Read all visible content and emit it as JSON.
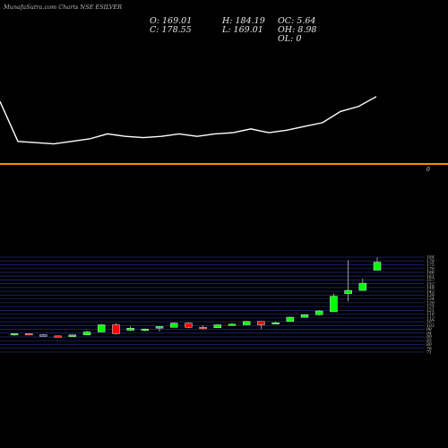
{
  "brand": "MunafaSutra.com Charts NSE ESILVER",
  "ohlc_display": {
    "o_label": "O: 169.01",
    "h_label": "H: 184.19",
    "oc_label": "OC: 5.64",
    "c_label": "C: 178.55",
    "l_label": "L: 169.01",
    "oh_label": "OH: 8.98",
    "ol_label": "OL: 0"
  },
  "separator_label": "0",
  "colors": {
    "up": "#00ff00",
    "down": "#ff0000",
    "line": "#ffffff",
    "separator": "#ff8800",
    "grid": "#1d2a6e",
    "background": "#000000"
  },
  "chart_data": [
    {
      "type": "line",
      "name": "upper-line",
      "values": [
        102,
        86,
        85.5,
        85,
        86,
        87,
        89,
        88,
        87.5,
        88,
        89,
        88,
        89,
        89.5,
        91,
        89.5,
        90.5,
        92,
        93.5,
        98,
        100,
        104
      ],
      "ylim": [
        78,
        114
      ]
    },
    {
      "type": "candlestick",
      "ylim": [
        71.5,
        184.5
      ],
      "yticks": [
        "184",
        "179",
        "175",
        "170",
        "166",
        "161",
        "157",
        "152",
        "148",
        "143",
        "139",
        "134",
        "130",
        "125",
        "121",
        "116",
        "112",
        "107",
        "103",
        "98",
        "94",
        "89",
        "85",
        "80",
        "76",
        "71"
      ],
      "candles": [
        {
          "o": 92,
          "h": 94,
          "l": 91,
          "c": 93.5
        },
        {
          "o": 93.5,
          "h": 94,
          "l": 91.5,
          "c": 92
        },
        {
          "o": 92,
          "h": 93,
          "l": 90.5,
          "c": 91
        },
        {
          "o": 90.8,
          "h": 91.5,
          "l": 89.5,
          "c": 90
        },
        {
          "o": 90,
          "h": 92.5,
          "l": 89.5,
          "c": 92
        },
        {
          "o": 92,
          "h": 96.5,
          "l": 92,
          "c": 95.5
        },
        {
          "o": 95.5,
          "h": 105,
          "l": 95.5,
          "c": 104
        },
        {
          "o": 104,
          "h": 106,
          "l": 92.5,
          "c": 93.5
        },
        {
          "o": 97.5,
          "h": 102,
          "l": 96.5,
          "c": 100
        },
        {
          "o": 98,
          "h": 99.5,
          "l": 96,
          "c": 99
        },
        {
          "o": 100,
          "h": 101.5,
          "l": 96,
          "c": 102
        },
        {
          "o": 101,
          "h": 107,
          "l": 101,
          "c": 106
        },
        {
          "o": 106,
          "h": 107,
          "l": 100,
          "c": 101
        },
        {
          "o": 101,
          "h": 103.5,
          "l": 98.5,
          "c": 99.5
        },
        {
          "o": 100.5,
          "h": 105,
          "l": 100.5,
          "c": 104
        },
        {
          "o": 104,
          "h": 106,
          "l": 102.5,
          "c": 104.8
        },
        {
          "o": 104,
          "h": 108.5,
          "l": 104,
          "c": 108
        },
        {
          "o": 108,
          "h": 108,
          "l": 99,
          "c": 104
        },
        {
          "o": 105,
          "h": 108,
          "l": 104.5,
          "c": 106.5
        },
        {
          "o": 108,
          "h": 114,
          "l": 108,
          "c": 113
        },
        {
          "o": 113,
          "h": 116.5,
          "l": 112.5,
          "c": 116
        },
        {
          "o": 116,
          "h": 121.5,
          "l": 115,
          "c": 120.5
        },
        {
          "o": 119.5,
          "h": 141,
          "l": 119.5,
          "c": 138
        },
        {
          "o": 141,
          "h": 181,
          "l": 132,
          "c": 145
        },
        {
          "o": 145,
          "h": 159,
          "l": 144.5,
          "c": 153.5
        },
        {
          "o": 169.01,
          "h": 184.19,
          "l": 169.01,
          "c": 178.55
        }
      ]
    }
  ]
}
